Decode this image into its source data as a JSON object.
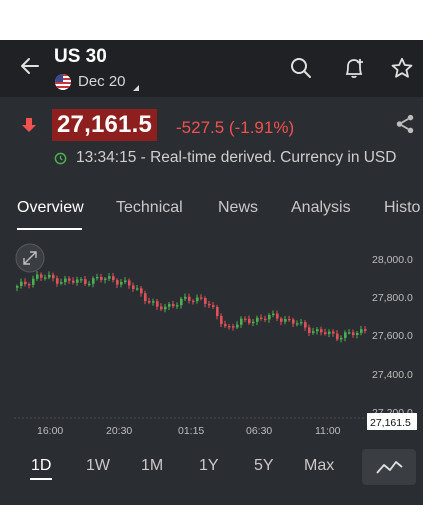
{
  "header": {
    "title": "US 30",
    "date": "Dec 20",
    "icons": [
      "back-arrow-icon",
      "search-icon",
      "add-alert-icon",
      "star-icon"
    ]
  },
  "quote": {
    "price": "27,161.5",
    "change": "-527.5 (-1.91%)",
    "status": "13:34:15 - Real-time derived. Currency in USD",
    "direction_icon": "down-arrow-icon",
    "colors": {
      "down": "#f0524f",
      "price_bg": "#8e1f1f"
    }
  },
  "tabs": [
    "Overview",
    "Technical",
    "News",
    "Analysis",
    "Histo"
  ],
  "chart": {
    "y_ticks": [
      "28,000.0",
      "27,800.0",
      "27,600.0",
      "27,400.0",
      "27,200.0"
    ],
    "x_ticks": [
      "16:00",
      "20:30",
      "01:15",
      "06:30",
      "11:00"
    ],
    "last_price_label": "27,161.5",
    "colors": {
      "up": "#4caf50",
      "down": "#e0525a",
      "bg": "#2a2d31"
    }
  },
  "ranges": [
    "1D",
    "1W",
    "1M",
    "1Y",
    "5Y",
    "Max"
  ],
  "selected_range": "1D"
}
